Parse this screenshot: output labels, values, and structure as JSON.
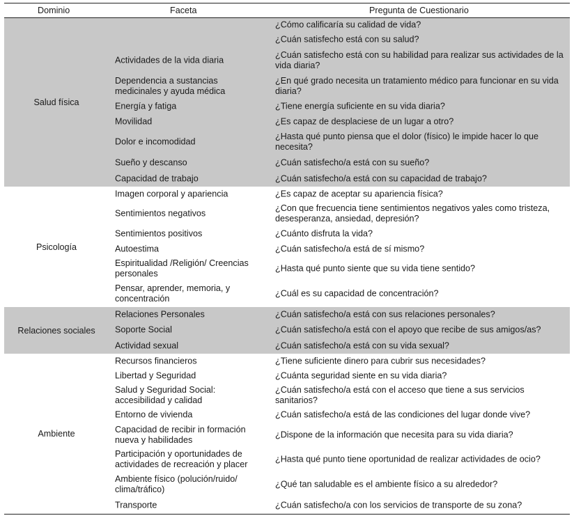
{
  "headers": {
    "domain": "Dominio",
    "facet": "Faceta",
    "question": "Pregunta de Cuestionario"
  },
  "shade_color": "#c8c8c8",
  "domains": [
    {
      "name": "Salud física",
      "shaded": true,
      "rows": [
        {
          "facet": "",
          "question": "¿Cómo calificaría su calidad de vida?"
        },
        {
          "facet": "",
          "question": "¿Cuán satisfecho está con su salud?"
        },
        {
          "facet": "Actividades de la vida diaria",
          "question": "¿Cuán satisfecho está con su habilidad para realizar sus actividades de la vida diaria?"
        },
        {
          "facet": "Dependencia a sustancias medicinales y ayuda médica",
          "question": "¿En qué grado necesita un tratamiento médico para funcionar en su vida diaria?"
        },
        {
          "facet": "Energía y fatiga",
          "question": "¿Tiene energía suficiente en su vida diaria?"
        },
        {
          "facet": "Movilidad",
          "question": "¿Es capaz de desplaciese de un lugar a otro?"
        },
        {
          "facet": "Dolor e incomodidad",
          "question": "¿Hasta qué punto piensa que el dolor (físico) le impide hacer lo que necesita?"
        },
        {
          "facet": "Sueño y descanso",
          "question": "¿Cuán satisfecho/a está con su sueño?"
        },
        {
          "facet": "Capacidad de trabajo",
          "question": "¿Cuán satisfecho/a está con su capacidad de trabajo?"
        }
      ]
    },
    {
      "name": "Psicología",
      "shaded": false,
      "rows": [
        {
          "facet": "Imagen corporal y apariencia",
          "question": "¿Es capaz de aceptar su apariencia física?"
        },
        {
          "facet": "Sentimientos negativos",
          "question": "¿Con que frecuencia tiene sentimientos negativos yales como tristeza, desesperanza, ansiedad, depresión?"
        },
        {
          "facet": "Sentimientos positivos",
          "question": "¿Cuánto disfruta la vida?"
        },
        {
          "facet": "Autoestima",
          "question": "¿Cuán satisfecho/a está de sí mismo?"
        },
        {
          "facet": "Espiritualidad /Religión/ Creencias personales",
          "question": "¿Hasta qué punto siente que su vida tiene sentido?"
        },
        {
          "facet": "Pensar, aprender, memoria, y concentración",
          "question": "¿Cuál es su capacidad de concentración?"
        }
      ]
    },
    {
      "name": "Relaciones sociales",
      "shaded": true,
      "rows": [
        {
          "facet": "Relaciones Personales",
          "question": "¿Cuán satisfecho/a está con sus relaciones personales?"
        },
        {
          "facet": "Soporte Social",
          "question": "¿Cuán satisfecho/a está con el apoyo que recibe de sus amigos/as?"
        },
        {
          "facet": "Actividad sexual",
          "question": "¿Cuán satisfecho/a está con su vida sexual?"
        }
      ]
    },
    {
      "name": "Ambiente",
      "shaded": false,
      "rows": [
        {
          "facet": "Recursos financieros",
          "question": "¿Tiene suficiente dinero para cubrir sus necesidades?"
        },
        {
          "facet": "Libertad y Seguridad",
          "question": "¿Cuánta seguridad siente en su vida diaria?"
        },
        {
          "facet": "Salud y Seguridad Social: accesibilidad y calidad",
          "question": "¿Cuán satisfecho/a está con el acceso que tiene a sus servicios sanitarios?"
        },
        {
          "facet": "Entorno de vivienda",
          "question": "¿Cuán satisfecho/a está de las condiciones del lugar donde vive?"
        },
        {
          "facet": "Capacidad de recibir in formación nueva y habilidades",
          "question": "¿Dispone de la información que necesita para su vida diaria?"
        },
        {
          "facet": "Participación y oportunidades de actividades de recreación y placer",
          "question": "¿Hasta qué punto tiene oportunidad de realizar actividades de ocio?"
        },
        {
          "facet": "Ambiente físico (polución/ruido/ clima/tráfico)",
          "question": "¿Qué tan saludable es el ambiente físico a su alrededor?"
        },
        {
          "facet": "Transporte",
          "question": "¿Cuán satisfecho/a con los servicios de transporte de su zona?"
        }
      ]
    }
  ]
}
